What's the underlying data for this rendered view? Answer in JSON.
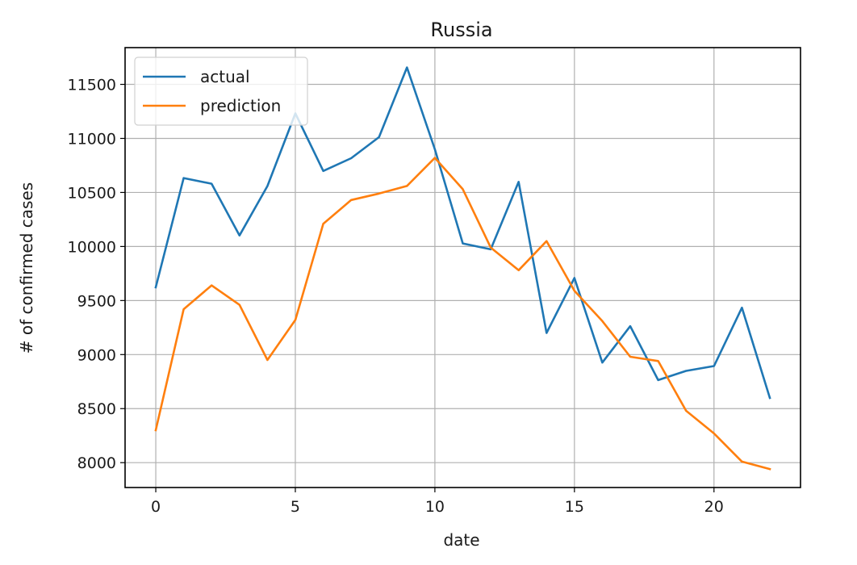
{
  "chart_data": {
    "type": "line",
    "title": "Russia",
    "xlabel": "date",
    "ylabel": "# of confirmed cases",
    "xlim": [
      -1.1,
      23.1
    ],
    "ylim": [
      7770,
      11840
    ],
    "xticks": [
      0,
      5,
      10,
      15,
      20
    ],
    "yticks": [
      8000,
      8500,
      9000,
      9500,
      10000,
      10500,
      11000,
      11500
    ],
    "grid": true,
    "legend_position": "top-left",
    "x": [
      0,
      1,
      2,
      3,
      4,
      5,
      6,
      7,
      8,
      9,
      10,
      11,
      12,
      13,
      14,
      15,
      16,
      17,
      18,
      19,
      20,
      21,
      22
    ],
    "series": [
      {
        "name": "actual",
        "color": "#1f77b4",
        "values": [
          9623,
          10633,
          10581,
          10102,
          10559,
          11231,
          10699,
          10817,
          11012,
          11656,
          10899,
          10028,
          9974,
          10598,
          9200,
          9709,
          8926,
          9263,
          8764,
          8849,
          8894,
          9434,
          8599
        ]
      },
      {
        "name": "prediction",
        "color": "#ff7f0e",
        "values": [
          8300,
          9420,
          9640,
          9460,
          8950,
          9320,
          10210,
          10430,
          10490,
          10560,
          10820,
          10530,
          9990,
          9780,
          10050,
          9590,
          9310,
          8980,
          8940,
          8480,
          8270,
          8010,
          7940
        ]
      }
    ]
  }
}
